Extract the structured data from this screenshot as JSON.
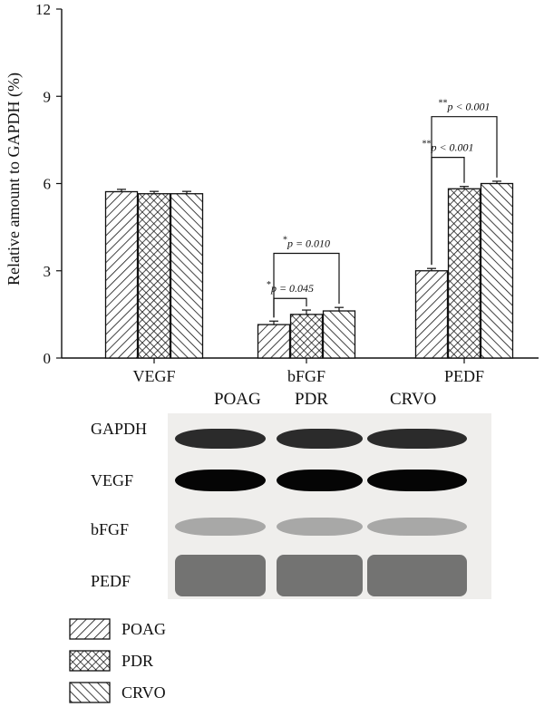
{
  "chart_data": {
    "type": "bar",
    "categories": [
      "VEGF",
      "bFGF",
      "PEDF"
    ],
    "series": [
      {
        "name": "POAG",
        "values": [
          5.72,
          1.15,
          3.0
        ],
        "errors": [
          0.08,
          0.12,
          0.08
        ],
        "pattern": "diagonal-right"
      },
      {
        "name": "PDR",
        "values": [
          5.65,
          1.5,
          5.82
        ],
        "errors": [
          0.08,
          0.15,
          0.08
        ],
        "pattern": "crosshatch"
      },
      {
        "name": "CRVO",
        "values": [
          5.65,
          1.62,
          6.0
        ],
        "errors": [
          0.08,
          0.12,
          0.08
        ],
        "pattern": "diagonal-left"
      }
    ],
    "ylabel": "Relative amount to GAPDH (%)",
    "xlabel": "",
    "ylim": [
      0,
      12
    ],
    "yticks": [
      "0",
      "3",
      "6",
      "9",
      "12"
    ],
    "annotations": [
      {
        "category": "bFGF",
        "from": "POAG",
        "to": "PDR",
        "stars": "*",
        "text": "p = 0.045",
        "level": 2.05
      },
      {
        "category": "bFGF",
        "from": "POAG",
        "to": "CRVO",
        "stars": "*",
        "text": "p = 0.010",
        "level": 3.6
      },
      {
        "category": "PEDF",
        "from": "POAG",
        "to": "PDR",
        "stars": "**",
        "text": "p < 0.001",
        "level": 6.9
      },
      {
        "category": "PEDF",
        "from": "POAG",
        "to": "CRVO",
        "stars": "**",
        "text": "p < 0.001",
        "level": 8.3
      }
    ]
  },
  "blot": {
    "lanes": [
      "POAG",
      "PDR",
      "CRVO"
    ],
    "rows": [
      "GAPDH",
      "VEGF",
      "bFGF",
      "PEDF"
    ]
  },
  "legend": {
    "items": [
      "POAG",
      "PDR",
      "CRVO"
    ]
  }
}
